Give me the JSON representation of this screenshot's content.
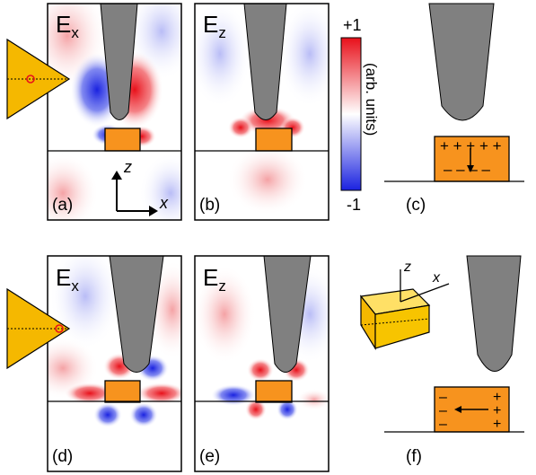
{
  "panels": {
    "a": {
      "field": "E",
      "sub": "x",
      "tag": "(a)"
    },
    "b": {
      "field": "E",
      "sub": "z",
      "tag": "(b)"
    },
    "c": {
      "tag": "(c)"
    },
    "d": {
      "field": "E",
      "sub": "x",
      "tag": "(d)"
    },
    "e": {
      "field": "E",
      "sub": "z",
      "tag": "(e)"
    },
    "f": {
      "tag": "(f)"
    }
  },
  "colorbar": {
    "max_label": "+1",
    "min_label": "-1",
    "units_label": "(arb. units)",
    "colors": {
      "positive": "#e8101a",
      "zero": "#ffffff",
      "negative": "#1a22e0"
    }
  },
  "axes": {
    "z": "z",
    "x": "x"
  },
  "charges": {
    "c": {
      "top": "+ + + + +",
      "bottom": "– – – –"
    },
    "f": {
      "left": [
        "–",
        "–",
        "–"
      ],
      "right": [
        "+",
        "+",
        "+"
      ]
    }
  },
  "colors": {
    "tip": "#808080",
    "particle": "#f7931e",
    "prism": "#f5b800"
  }
}
